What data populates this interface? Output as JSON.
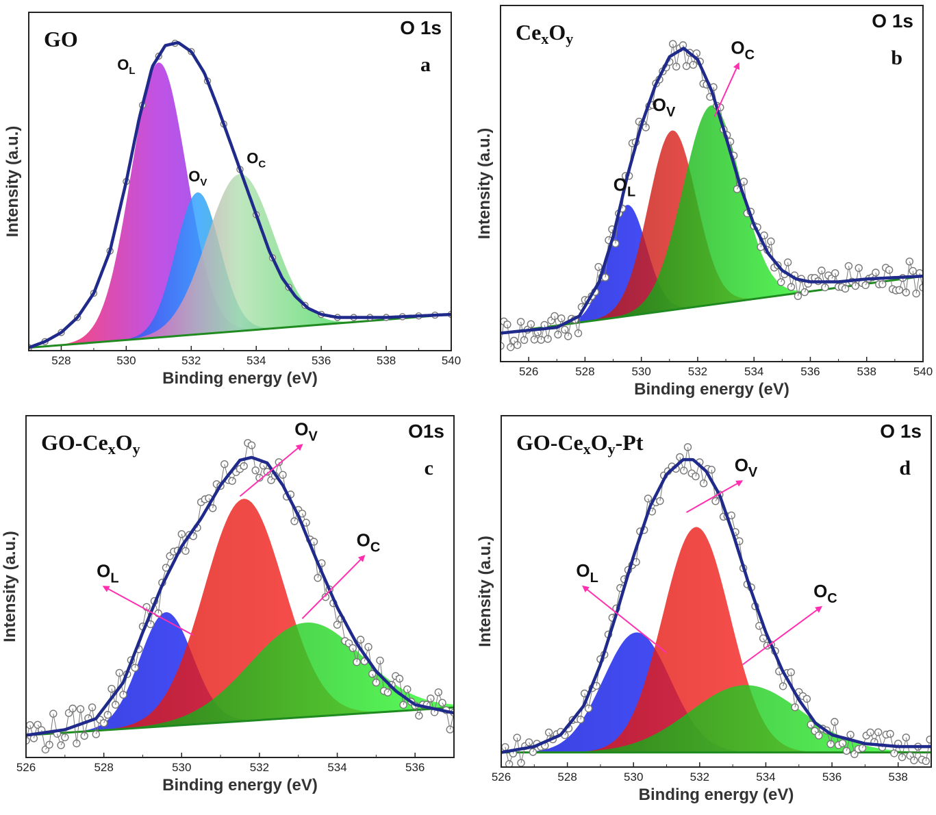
{
  "chart_data": [
    {
      "type": "area",
      "panel": "a",
      "title": "GO",
      "core_level": "O 1s",
      "xlabel": "Binding energy (eV)",
      "ylabel": "Intensity (a.u.)",
      "xlim": [
        527,
        540
      ],
      "ylim": [
        0,
        1.12
      ],
      "xticks": [
        "528",
        "530",
        "532",
        "534",
        "536",
        "538",
        "540"
      ],
      "baseline": {
        "x": [
          527,
          540
        ],
        "y": [
          0.01,
          0.12
        ]
      },
      "peaks": [
        {
          "name": "OL",
          "label_main": "O",
          "label_sub": "L",
          "center": 531.0,
          "height": 0.91,
          "fwhm": 2.0,
          "colors": [
            "#ff1a4a",
            "#b02ae0",
            "#6d3cf0"
          ],
          "arrow": false,
          "label_at": [
            530.0,
            0.93
          ]
        },
        {
          "name": "OV",
          "label_main": "O",
          "label_sub": "V",
          "center": 532.2,
          "height": 0.47,
          "fwhm": 1.6,
          "colors": [
            "#2a3ff0",
            "#2aa0ff",
            "#1fb070"
          ],
          "arrow": false,
          "label_at": [
            532.2,
            0.56
          ]
        },
        {
          "name": "OC",
          "label_main": "O",
          "label_sub": "C",
          "center": 533.5,
          "height": 0.52,
          "fwhm": 2.4,
          "colors": [
            "#ff3fbf",
            "#b0e0b0",
            "#2ed84a"
          ],
          "arrow": false,
          "label_at": [
            534.0,
            0.62
          ]
        }
      ],
      "envelope": {
        "x": [
          527.0,
          527.5,
          528.0,
          528.5,
          529.0,
          529.5,
          530.0,
          530.4,
          530.8,
          531.2,
          531.6,
          532.0,
          532.4,
          532.8,
          533.2,
          533.6,
          534.0,
          534.4,
          534.8,
          535.2,
          535.6,
          536.0,
          536.5,
          537.0,
          538.0,
          539.0,
          540.0
        ],
        "y": [
          0.01,
          0.03,
          0.06,
          0.11,
          0.19,
          0.33,
          0.56,
          0.77,
          0.94,
          1.01,
          1.02,
          0.99,
          0.92,
          0.81,
          0.69,
          0.57,
          0.45,
          0.33,
          0.24,
          0.18,
          0.14,
          0.12,
          0.11,
          0.11,
          0.11,
          0.115,
          0.12
        ]
      },
      "marker_step": 0.5,
      "noise": 0
    },
    {
      "type": "area",
      "panel": "b",
      "title": "CexOy",
      "title_parts": [
        "Ce",
        "x",
        "O",
        "y"
      ],
      "core_level": "O 1s",
      "xlabel": "Binding energy (eV)",
      "ylabel": "Intensity (a.u.)",
      "xlim": [
        525,
        540
      ],
      "ylim": [
        -0.1,
        1.15
      ],
      "xticks": [
        "526",
        "528",
        "530",
        "532",
        "534",
        "536",
        "538",
        "540"
      ],
      "baseline": {
        "x": [
          525,
          540
        ],
        "y": [
          0.0,
          0.2
        ]
      },
      "peaks": [
        {
          "name": "OL",
          "label_main": "O",
          "label_sub": "L",
          "center": 529.5,
          "height": 0.39,
          "fwhm": 1.6,
          "colors": [
            "#0a14d8",
            "#1f2bff"
          ],
          "arrow": false,
          "label_at": [
            529.4,
            0.5
          ]
        },
        {
          "name": "OV",
          "label_main": "O",
          "label_sub": "V",
          "center": 531.1,
          "height": 0.63,
          "fwhm": 2.0,
          "colors": [
            "#b0160c",
            "#ff2a2a"
          ],
          "arrow": false,
          "label_at": [
            530.8,
            0.78
          ]
        },
        {
          "name": "OC",
          "label_main": "O",
          "label_sub": "C",
          "center": 532.5,
          "height": 0.7,
          "fwhm": 2.4,
          "colors": [
            "#0d8a0d",
            "#33ff33"
          ],
          "arrow": true,
          "arrow_from": [
            532.6,
            0.76
          ],
          "label_at": [
            533.6,
            0.98
          ]
        }
      ],
      "envelope": {
        "x": [
          525.0,
          526.0,
          527.0,
          527.8,
          528.5,
          529.0,
          529.5,
          530.0,
          530.5,
          531.0,
          531.5,
          532.0,
          532.5,
          533.0,
          533.5,
          534.0,
          534.5,
          535.0,
          535.5,
          536.0,
          537.0,
          538.0,
          540.0
        ],
        "y": [
          0.0,
          0.01,
          0.02,
          0.06,
          0.18,
          0.34,
          0.55,
          0.73,
          0.87,
          0.97,
          1.0,
          0.96,
          0.85,
          0.69,
          0.52,
          0.38,
          0.28,
          0.22,
          0.19,
          0.18,
          0.18,
          0.19,
          0.2
        ]
      },
      "marker_step": 0.12,
      "noise": 0.06
    },
    {
      "type": "area",
      "panel": "c",
      "title": "GO-CexOy",
      "title_parts": [
        "GO-Ce",
        "x",
        "O",
        "y"
      ],
      "core_level": "O1s",
      "xlabel": "Binding energy (eV)",
      "ylabel": "Intensity (a.u.)",
      "xlim": [
        526,
        537
      ],
      "ylim": [
        -0.08,
        1.15
      ],
      "xticks": [
        "526",
        "528",
        "530",
        "532",
        "534",
        "536"
      ],
      "baseline": {
        "x": [
          526,
          537
        ],
        "y": [
          0.0,
          0.1
        ]
      },
      "peaks": [
        {
          "name": "OL",
          "label_main": "O",
          "label_sub": "L",
          "center": 529.6,
          "height": 0.41,
          "fwhm": 1.6,
          "colors": [
            "#0a14d8",
            "#1f2bff"
          ],
          "arrow": true,
          "arrow_from": [
            530.3,
            0.36
          ],
          "label_at": [
            528.1,
            0.57
          ]
        },
        {
          "name": "OV",
          "label_main": "O",
          "label_sub": "V",
          "center": 531.6,
          "height": 0.8,
          "fwhm": 2.4,
          "colors": [
            "#d8140c",
            "#ff2a2a"
          ],
          "arrow": true,
          "arrow_from": [
            531.5,
            0.86
          ],
          "label_at": [
            533.2,
            1.08
          ]
        },
        {
          "name": "OC",
          "label_main": "O",
          "label_sub": "C",
          "center": 533.2,
          "height": 0.34,
          "fwhm": 3.4,
          "colors": [
            "#0d8a0d",
            "#33ff33"
          ],
          "arrow": true,
          "arrow_from": [
            533.1,
            0.42
          ],
          "label_at": [
            534.8,
            0.68
          ]
        }
      ],
      "envelope": {
        "x": [
          526.0,
          527.0,
          527.8,
          528.5,
          529.0,
          529.5,
          530.0,
          530.5,
          531.0,
          531.5,
          531.8,
          532.2,
          532.6,
          533.0,
          533.5,
          534.0,
          534.5,
          535.0,
          535.5,
          536.0,
          537.0
        ],
        "y": [
          0.0,
          0.02,
          0.06,
          0.19,
          0.37,
          0.54,
          0.68,
          0.78,
          0.9,
          0.99,
          1.0,
          0.98,
          0.9,
          0.79,
          0.62,
          0.46,
          0.33,
          0.23,
          0.16,
          0.11,
          0.08
        ]
      },
      "marker_step": 0.1,
      "noise": 0.07
    },
    {
      "type": "area",
      "panel": "d",
      "title": "GO-CexOy-Pt",
      "title_parts": [
        "GO-Ce",
        "x",
        "O",
        "y",
        "-Pt"
      ],
      "core_level": "O 1s",
      "xlabel": "Binding energy (eV)",
      "ylabel": "Intensity (a.u.)",
      "xlim": [
        526,
        539
      ],
      "ylim": [
        -0.05,
        1.15
      ],
      "xticks": [
        "526",
        "528",
        "530",
        "532",
        "534",
        "536",
        "538"
      ],
      "baseline": {
        "x": [
          526,
          539
        ],
        "y": [
          0.0,
          0.0
        ]
      },
      "peaks": [
        {
          "name": "OL",
          "label_main": "O",
          "label_sub": "L",
          "center": 530.1,
          "height": 0.41,
          "fwhm": 2.4,
          "colors": [
            "#0a14d8",
            "#1f2bff"
          ],
          "arrow": true,
          "arrow_from": [
            531.0,
            0.34
          ],
          "label_at": [
            528.6,
            0.6
          ]
        },
        {
          "name": "OV",
          "label_main": "O",
          "label_sub": "V",
          "center": 531.9,
          "height": 0.77,
          "fwhm": 2.4,
          "colors": [
            "#d8140c",
            "#ff2a2a"
          ],
          "arrow": true,
          "arrow_from": [
            531.6,
            0.82
          ],
          "label_at": [
            533.4,
            0.96
          ]
        },
        {
          "name": "OC",
          "label_main": "O",
          "label_sub": "C",
          "center": 533.4,
          "height": 0.23,
          "fwhm": 4.0,
          "colors": [
            "#0d8a0d",
            "#33ff33"
          ],
          "arrow": true,
          "arrow_from": [
            533.3,
            0.3
          ],
          "label_at": [
            535.8,
            0.53
          ]
        }
      ],
      "envelope": {
        "x": [
          526.0,
          527.0,
          527.8,
          528.5,
          529.0,
          529.5,
          530.0,
          530.5,
          531.0,
          531.5,
          531.8,
          532.2,
          532.6,
          533.0,
          533.5,
          534.0,
          534.5,
          535.0,
          535.5,
          536.0,
          537.0,
          538.0,
          539.0
        ],
        "y": [
          0.0,
          0.02,
          0.06,
          0.16,
          0.3,
          0.48,
          0.67,
          0.84,
          0.95,
          1.0,
          1.0,
          0.96,
          0.88,
          0.75,
          0.57,
          0.41,
          0.28,
          0.18,
          0.1,
          0.06,
          0.03,
          0.02,
          0.02
        ]
      },
      "marker_step": 0.12,
      "noise": 0.05
    }
  ]
}
